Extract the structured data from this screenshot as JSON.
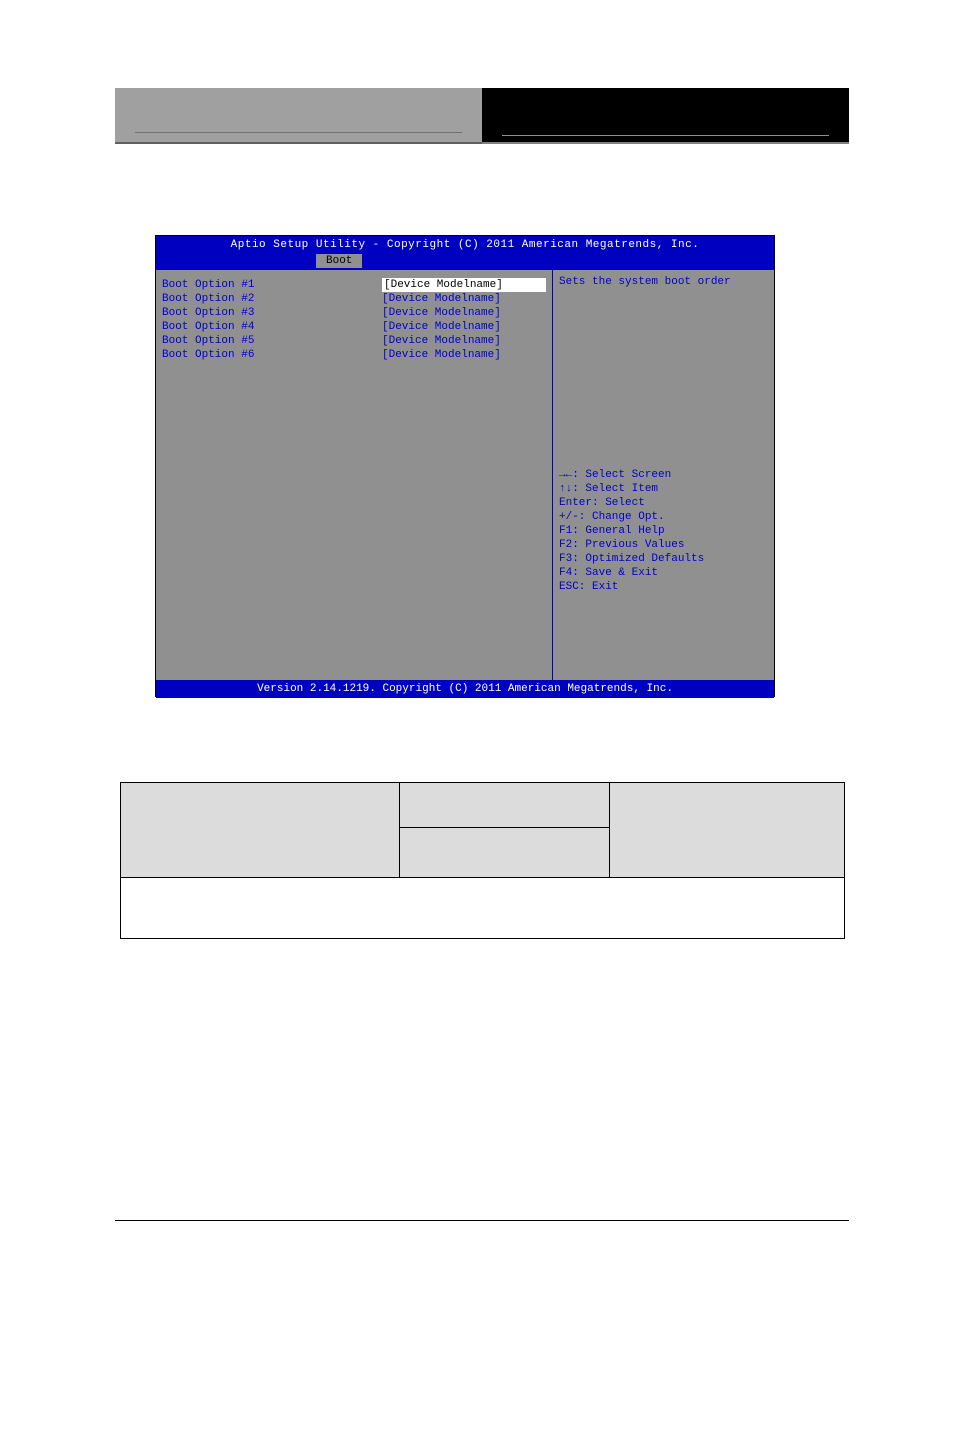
{
  "bios": {
    "title": "Aptio Setup Utility - Copyright (C) 2011 American Megatrends, Inc.",
    "tab": "Boot",
    "footer": "Version 2.14.1219. Copyright (C) 2011 American Megatrends, Inc.",
    "help_description": "Sets the system boot order",
    "boot_options": [
      {
        "label": "Boot Option #1",
        "value": "[Device Modelname]",
        "selected": true
      },
      {
        "label": "Boot Option #2",
        "value": "[Device Modelname]",
        "selected": false
      },
      {
        "label": "Boot Option #3",
        "value": "[Device Modelname]",
        "selected": false
      },
      {
        "label": "Boot Option #4",
        "value": "[Device Modelname]",
        "selected": false
      },
      {
        "label": "Boot Option #5",
        "value": "[Device Modelname]",
        "selected": false
      },
      {
        "label": "Boot Option #6",
        "value": "[Device Modelname]",
        "selected": false
      }
    ],
    "keyhelp": [
      "→←: Select Screen",
      "↑↓: Select Item",
      "Enter: Select",
      "+/-: Change Opt.",
      "F1: General Help",
      "F2: Previous Values",
      "F3: Optimized Defaults",
      "F4: Save & Exit",
      "ESC: Exit"
    ],
    "colors": {
      "bar_bg": "#0000c0",
      "bar_fg": "#ffffff",
      "body_bg": "#909090",
      "text_fg": "#0000d0",
      "selected_bg": "#ffffff",
      "selected_fg": "#000000"
    }
  }
}
